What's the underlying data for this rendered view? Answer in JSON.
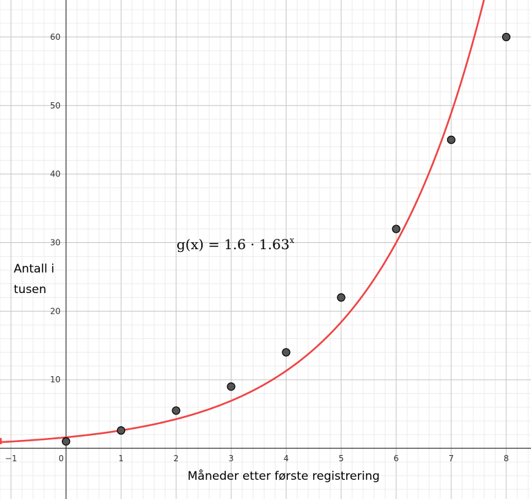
{
  "chart_data": {
    "type": "scatter",
    "title": "",
    "xlabel": "Måneder etter første registrering",
    "ylabel": "Antall i tusen",
    "xlim": [
      -1.2,
      8.45
    ],
    "ylim": [
      -7.4,
      65.4
    ],
    "grid": true,
    "x_ticks": [
      -1,
      0,
      1,
      2,
      3,
      4,
      5,
      6,
      7,
      8
    ],
    "y_ticks": [
      10,
      20,
      30,
      40,
      50,
      60
    ],
    "series": [
      {
        "type": "scatter",
        "x": [
          0,
          1,
          2,
          3,
          4,
          5,
          6,
          7,
          8
        ],
        "y": [
          1,
          2.6,
          5.5,
          9,
          14,
          22,
          32,
          45,
          60
        ],
        "color": "#555555"
      },
      {
        "type": "function",
        "name": "g(x)",
        "a": 1.6,
        "b": 1.63,
        "color": "#ef4444"
      }
    ],
    "annotation": {
      "lhs": "g(x)",
      "eq": "=",
      "rhs": "1.6 · 1.63",
      "exponent": "x"
    }
  }
}
